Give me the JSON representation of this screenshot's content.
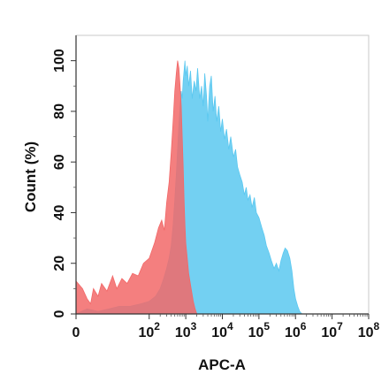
{
  "chart_data": {
    "type": "area",
    "title": "",
    "xlabel": "APC-A",
    "ylabel": "Count  (%)",
    "x_scale": "log",
    "xlim": [
      1,
      100000000
    ],
    "ylim": [
      0,
      110
    ],
    "x_ticks": [
      {
        "value": 1,
        "label": "0",
        "sup": ""
      },
      {
        "value": 100,
        "label": "10",
        "sup": "2"
      },
      {
        "value": 1000,
        "label": "10",
        "sup": "3"
      },
      {
        "value": 10000,
        "label": "10",
        "sup": "4"
      },
      {
        "value": 100000,
        "label": "10",
        "sup": "5"
      },
      {
        "value": 1000000,
        "label": "10",
        "sup": "6"
      },
      {
        "value": 10000000,
        "label": "10",
        "sup": "7"
      },
      {
        "value": 100000000,
        "label": "10",
        "sup": "8"
      }
    ],
    "y_ticks": [
      0,
      20,
      40,
      60,
      80,
      100
    ],
    "grid": false,
    "legend": "none",
    "series": [
      {
        "color": "#5BC8F0",
        "opacity": 0.85,
        "points": [
          [
            1,
            0
          ],
          [
            2,
            2
          ],
          [
            4,
            1
          ],
          [
            8,
            2
          ],
          [
            15,
            3
          ],
          [
            30,
            3
          ],
          [
            60,
            4
          ],
          [
            100,
            5
          ],
          [
            150,
            7
          ],
          [
            200,
            10
          ],
          [
            250,
            14
          ],
          [
            300,
            18
          ],
          [
            350,
            22
          ],
          [
            400,
            27
          ],
          [
            450,
            35
          ],
          [
            500,
            45
          ],
          [
            550,
            55
          ],
          [
            600,
            65
          ],
          [
            650,
            75
          ],
          [
            700,
            82
          ],
          [
            750,
            88
          ],
          [
            800,
            85
          ],
          [
            850,
            92
          ],
          [
            900,
            96
          ],
          [
            950,
            100
          ],
          [
            1000,
            94
          ],
          [
            1100,
            98
          ],
          [
            1200,
            90
          ],
          [
            1350,
            96
          ],
          [
            1500,
            85
          ],
          [
            1700,
            92
          ],
          [
            1900,
            88
          ],
          [
            2100,
            97
          ],
          [
            2400,
            85
          ],
          [
            2700,
            90
          ],
          [
            3000,
            82
          ],
          [
            3300,
            95
          ],
          [
            3700,
            86
          ],
          [
            4000,
            76
          ],
          [
            4500,
            90
          ],
          [
            5000,
            94
          ],
          [
            5600,
            80
          ],
          [
            6300,
            86
          ],
          [
            7000,
            76
          ],
          [
            8000,
            82
          ],
          [
            9000,
            72
          ],
          [
            10000,
            77
          ],
          [
            11500,
            69
          ],
          [
            13000,
            73
          ],
          [
            15000,
            65
          ],
          [
            17000,
            70
          ],
          [
            20000,
            62
          ],
          [
            23000,
            65
          ],
          [
            26000,
            58
          ],
          [
            30000,
            55
          ],
          [
            35000,
            52
          ],
          [
            40000,
            47
          ],
          [
            45000,
            50
          ],
          [
            50000,
            45
          ],
          [
            57000,
            47
          ],
          [
            65000,
            42
          ],
          [
            75000,
            46
          ],
          [
            85000,
            40
          ],
          [
            100000,
            38
          ],
          [
            120000,
            34
          ],
          [
            140000,
            31
          ],
          [
            160000,
            27
          ],
          [
            190000,
            24
          ],
          [
            220000,
            21
          ],
          [
            260000,
            18
          ],
          [
            300000,
            20
          ],
          [
            350000,
            17
          ],
          [
            400000,
            21
          ],
          [
            460000,
            24
          ],
          [
            520000,
            26
          ],
          [
            600000,
            25
          ],
          [
            700000,
            22
          ],
          [
            800000,
            17
          ],
          [
            900000,
            10
          ],
          [
            1000000,
            6
          ],
          [
            1150000,
            3
          ],
          [
            1300000,
            1
          ],
          [
            1500000,
            0
          ]
        ]
      },
      {
        "color": "#F26868",
        "opacity": 0.85,
        "points": [
          [
            1,
            13
          ],
          [
            1.5,
            10
          ],
          [
            2,
            6
          ],
          [
            2.5,
            4
          ],
          [
            3,
            10
          ],
          [
            4,
            7
          ],
          [
            5,
            12
          ],
          [
            7,
            9
          ],
          [
            10,
            15
          ],
          [
            13,
            10
          ],
          [
            18,
            14
          ],
          [
            25,
            12
          ],
          [
            35,
            16
          ],
          [
            50,
            15
          ],
          [
            70,
            20
          ],
          [
            100,
            22
          ],
          [
            140,
            28
          ],
          [
            180,
            34
          ],
          [
            220,
            37
          ],
          [
            260,
            33
          ],
          [
            300,
            44
          ],
          [
            350,
            52
          ],
          [
            400,
            64
          ],
          [
            450,
            76
          ],
          [
            500,
            88
          ],
          [
            550,
            95
          ],
          [
            600,
            100
          ],
          [
            650,
            97
          ],
          [
            700,
            90
          ],
          [
            750,
            82
          ],
          [
            800,
            70
          ],
          [
            850,
            58
          ],
          [
            900,
            45
          ],
          [
            950,
            35
          ],
          [
            1000,
            28
          ],
          [
            1100,
            22
          ],
          [
            1200,
            16
          ],
          [
            1400,
            10
          ],
          [
            1600,
            5
          ],
          [
            1800,
            2
          ],
          [
            2000,
            0
          ]
        ]
      }
    ]
  }
}
